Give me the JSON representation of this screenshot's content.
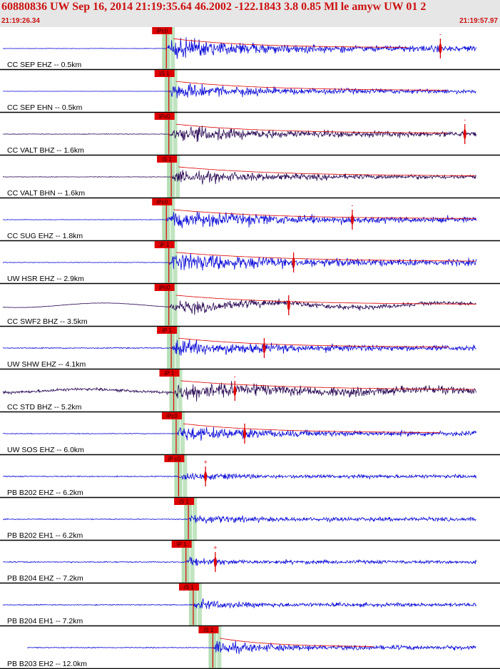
{
  "header": {
    "title": "60880836 UW Sep 16, 2014 21:19:35.64   46.2002 -122.1843  3.8 0.85 Ml le amyw UW 01   2",
    "start_time": "21:19:26.34",
    "end_time": "21:19:57.97"
  },
  "colors": {
    "header_bg": "#e6e6e6",
    "header_text": "#cc1111",
    "trace_blue": "#0a0ad8",
    "trace_purple": "#2a0a55",
    "pick": "#dd0000",
    "window_band": "#b5dfb5",
    "separator": "#000000"
  },
  "chart_data": {
    "type": "seismogram-record",
    "time_range": [
      "21:19:26.34",
      "21:19:57.97"
    ],
    "traces": [
      {
        "label": "CC SEP EHZ -- 0.5km",
        "color": "blue",
        "pick": "iPc0",
        "pick_type": "P",
        "onset": 0.34,
        "amp": 1.0,
        "noise": 0.06,
        "coda": 0.25,
        "marker": 0.9,
        "marker_sign": "-",
        "trace_start": 0.0,
        "trace_end": 0.98,
        "wavy": 0.0
      },
      {
        "label": "CC SEP EHN -- 0.5km",
        "color": "blue",
        "pick": "iS 1",
        "pick_type": "S",
        "onset": 0.345,
        "amp": 0.7,
        "noise": 0.03,
        "coda": 0.3,
        "marker": null,
        "marker_sign": "",
        "trace_start": 0.0,
        "trace_end": 0.98,
        "wavy": 0.0
      },
      {
        "label": "CC VALT BHZ -- 1.6km",
        "color": "purple",
        "pick": "iPc0",
        "pick_type": "P",
        "onset": 0.345,
        "amp": 0.8,
        "noise": 0.08,
        "coda": 0.3,
        "marker": 0.95,
        "marker_sign": "-",
        "trace_start": 0.0,
        "trace_end": 0.98,
        "wavy": 0.0
      },
      {
        "label": "CC VALT BHN -- 1.6km",
        "color": "purple",
        "pick": "iS 1",
        "pick_type": "S",
        "onset": 0.35,
        "amp": 0.6,
        "noise": 0.07,
        "coda": 0.35,
        "marker": null,
        "marker_sign": "",
        "trace_start": 0.0,
        "trace_end": 0.98,
        "wavy": 0.0
      },
      {
        "label": "CC SUG EHZ -- 1.8km",
        "color": "blue",
        "pick": "iPc0",
        "pick_type": "P",
        "onset": 0.34,
        "amp": 0.85,
        "noise": 0.06,
        "coda": 0.35,
        "marker": 0.72,
        "marker_sign": "-",
        "trace_start": 0.0,
        "trace_end": 0.98,
        "wavy": 0.0
      },
      {
        "label": "UW HSR EHZ -- 2.9km",
        "color": "blue",
        "pick": "iP 1",
        "pick_type": "P",
        "onset": 0.345,
        "amp": 0.9,
        "noise": 0.08,
        "coda": 0.4,
        "marker": 0.6,
        "marker_sign": "",
        "trace_start": 0.0,
        "trace_end": 0.98,
        "wavy": 0.0
      },
      {
        "label": "CC SWF2 BHZ -- 3.5km",
        "color": "purple",
        "pick": "iPc0",
        "pick_type": "P",
        "onset": 0.345,
        "amp": 0.6,
        "noise": 0.05,
        "coda": 0.35,
        "marker": 0.59,
        "marker_sign": "",
        "trace_start": 0.0,
        "trace_end": 0.98,
        "wavy": 0.35
      },
      {
        "label": "UW SHW EHZ -- 4.1km",
        "color": "blue",
        "pick": "iP 1",
        "pick_type": "P",
        "onset": 0.35,
        "amp": 0.75,
        "noise": 0.14,
        "coda": 0.3,
        "marker": 0.54,
        "marker_sign": "",
        "trace_start": 0.0,
        "trace_end": 0.98,
        "wavy": 0.0
      },
      {
        "label": "CC STD BHZ -- 5.2km",
        "color": "purple",
        "pick": "iP 1",
        "pick_type": "P",
        "onset": 0.355,
        "amp": 0.7,
        "noise": 0.35,
        "coda": 0.4,
        "marker": 0.48,
        "marker_sign": "-",
        "trace_start": 0.0,
        "trace_end": 0.98,
        "wavy": 0.25
      },
      {
        "label": "UW SOS EHZ -- 6.0km",
        "color": "blue",
        "pick": "iPc0",
        "pick_type": "P",
        "onset": 0.36,
        "amp": 0.7,
        "noise": 0.09,
        "coda": 0.28,
        "marker": 0.5,
        "marker_sign": "",
        "trace_start": 0.0,
        "trace_end": 0.98,
        "wavy": 0.0
      },
      {
        "label": "PB B202 EHZ -- 6.2km",
        "color": "blue",
        "pick": "iP c0",
        "pick_type": "P",
        "onset": 0.365,
        "amp": 0.45,
        "noise": 0.13,
        "coda": 0.1,
        "marker": 0.42,
        "marker_sign": "+",
        "trace_start": 0.0,
        "trace_end": 0.98,
        "wavy": 0.0
      },
      {
        "label": "PB B202 EH1 -- 6.2km",
        "color": "blue",
        "pick": "iS 1",
        "pick_type": "S",
        "onset": 0.385,
        "amp": 0.55,
        "noise": 0.11,
        "coda": 0.1,
        "marker": null,
        "marker_sign": "",
        "trace_start": 0.0,
        "trace_end": 0.98,
        "wavy": 0.0
      },
      {
        "label": "PB B204 EHZ -- 7.2km",
        "color": "blue",
        "pick": "iP 1",
        "pick_type": "P",
        "onset": 0.38,
        "amp": 0.4,
        "noise": 0.14,
        "coda": 0.1,
        "marker": 0.44,
        "marker_sign": "+",
        "trace_start": 0.0,
        "trace_end": 0.98,
        "wavy": 0.0
      },
      {
        "label": "PB B204 EH1 -- 7.2km",
        "color": "blue",
        "pick": "iS 1",
        "pick_type": "S",
        "onset": 0.395,
        "amp": 0.5,
        "noise": 0.12,
        "coda": 0.1,
        "marker": null,
        "marker_sign": "",
        "trace_start": 0.0,
        "trace_end": 0.98,
        "wavy": 0.0
      },
      {
        "label": "PB B203 EH2 -- 12.0km",
        "color": "blue",
        "pick": "iS 1",
        "pick_type": "S",
        "onset": 0.435,
        "amp": 0.6,
        "noise": 0.12,
        "coda": 0.15,
        "marker": null,
        "marker_sign": "",
        "trace_start": 0.05,
        "trace_end": 0.98,
        "wavy": 0.0
      }
    ]
  }
}
